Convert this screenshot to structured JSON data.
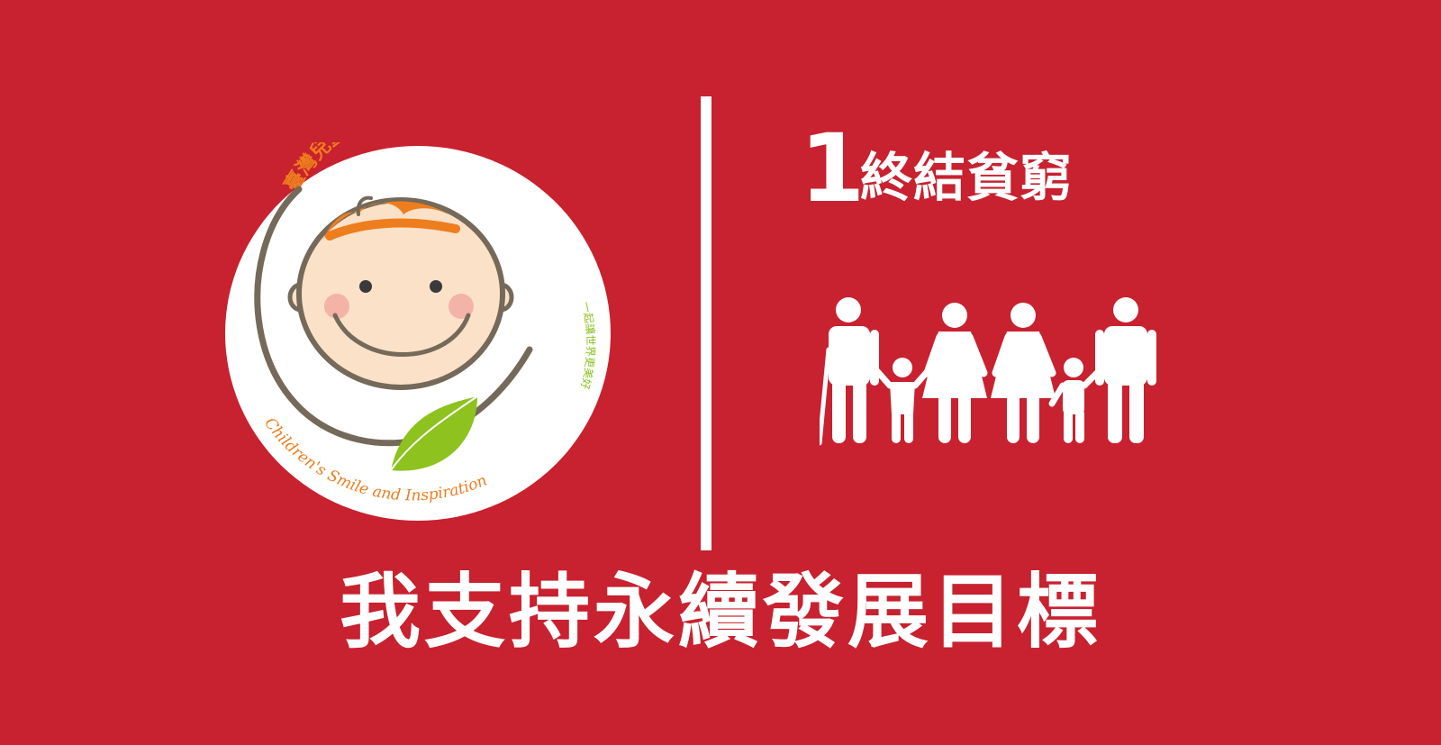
{
  "banner": {
    "background_color": "#c8212f",
    "slogan": "我支持永續發展目標"
  },
  "logo": {
    "organization_name": "臺灣兒童健康暨身心發展協會",
    "motto": "一起讓世界更美好",
    "english_tagline": "Children's Smile and Inspiration",
    "colors": {
      "name_text": "#ee7d1e",
      "motto_text": "#8dc21f",
      "leaf": "#8dc21f",
      "hair": "#ee7d1e",
      "outline": "#75695a",
      "face": "#fbe1c8",
      "cheek": "#f3a7a0"
    }
  },
  "goal": {
    "number": "1",
    "title": "終結貧窮",
    "icon": "family-icon"
  }
}
